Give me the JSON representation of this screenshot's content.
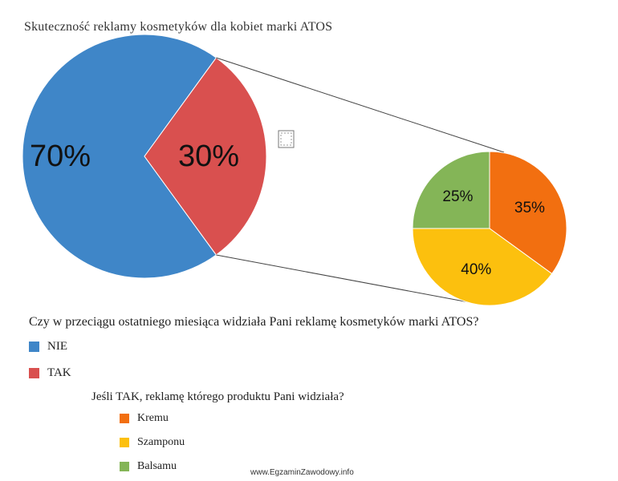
{
  "chart_data": [
    {
      "type": "pie",
      "title": "Skuteczność reklamy kosmetyków dla kobiet marki ATOS",
      "question": "Czy w przeciągu ostatniego miesiąca widziała Pani reklamę kosmetyków marki ATOS?",
      "categories": [
        "NIE",
        "TAK"
      ],
      "values": [
        70,
        30
      ],
      "data_labels": [
        "70%",
        "30%"
      ],
      "colors": [
        "#3f86c8",
        "#d9504f"
      ],
      "legend_placement": "bottom-left"
    },
    {
      "type": "pie",
      "question": "Jeśli TAK, reklamę którego produktu Pani widziała?",
      "categories": [
        "Kremu",
        "Szamponu",
        "Balsamu"
      ],
      "values": [
        35,
        40,
        25
      ],
      "data_labels": [
        "35%",
        "40%",
        "25%"
      ],
      "colors": [
        "#f26f10",
        "#fcc00e",
        "#84b557"
      ],
      "legend_placement": "bottom-left"
    }
  ],
  "watermark": "www.EgzaminZawodowy.info"
}
